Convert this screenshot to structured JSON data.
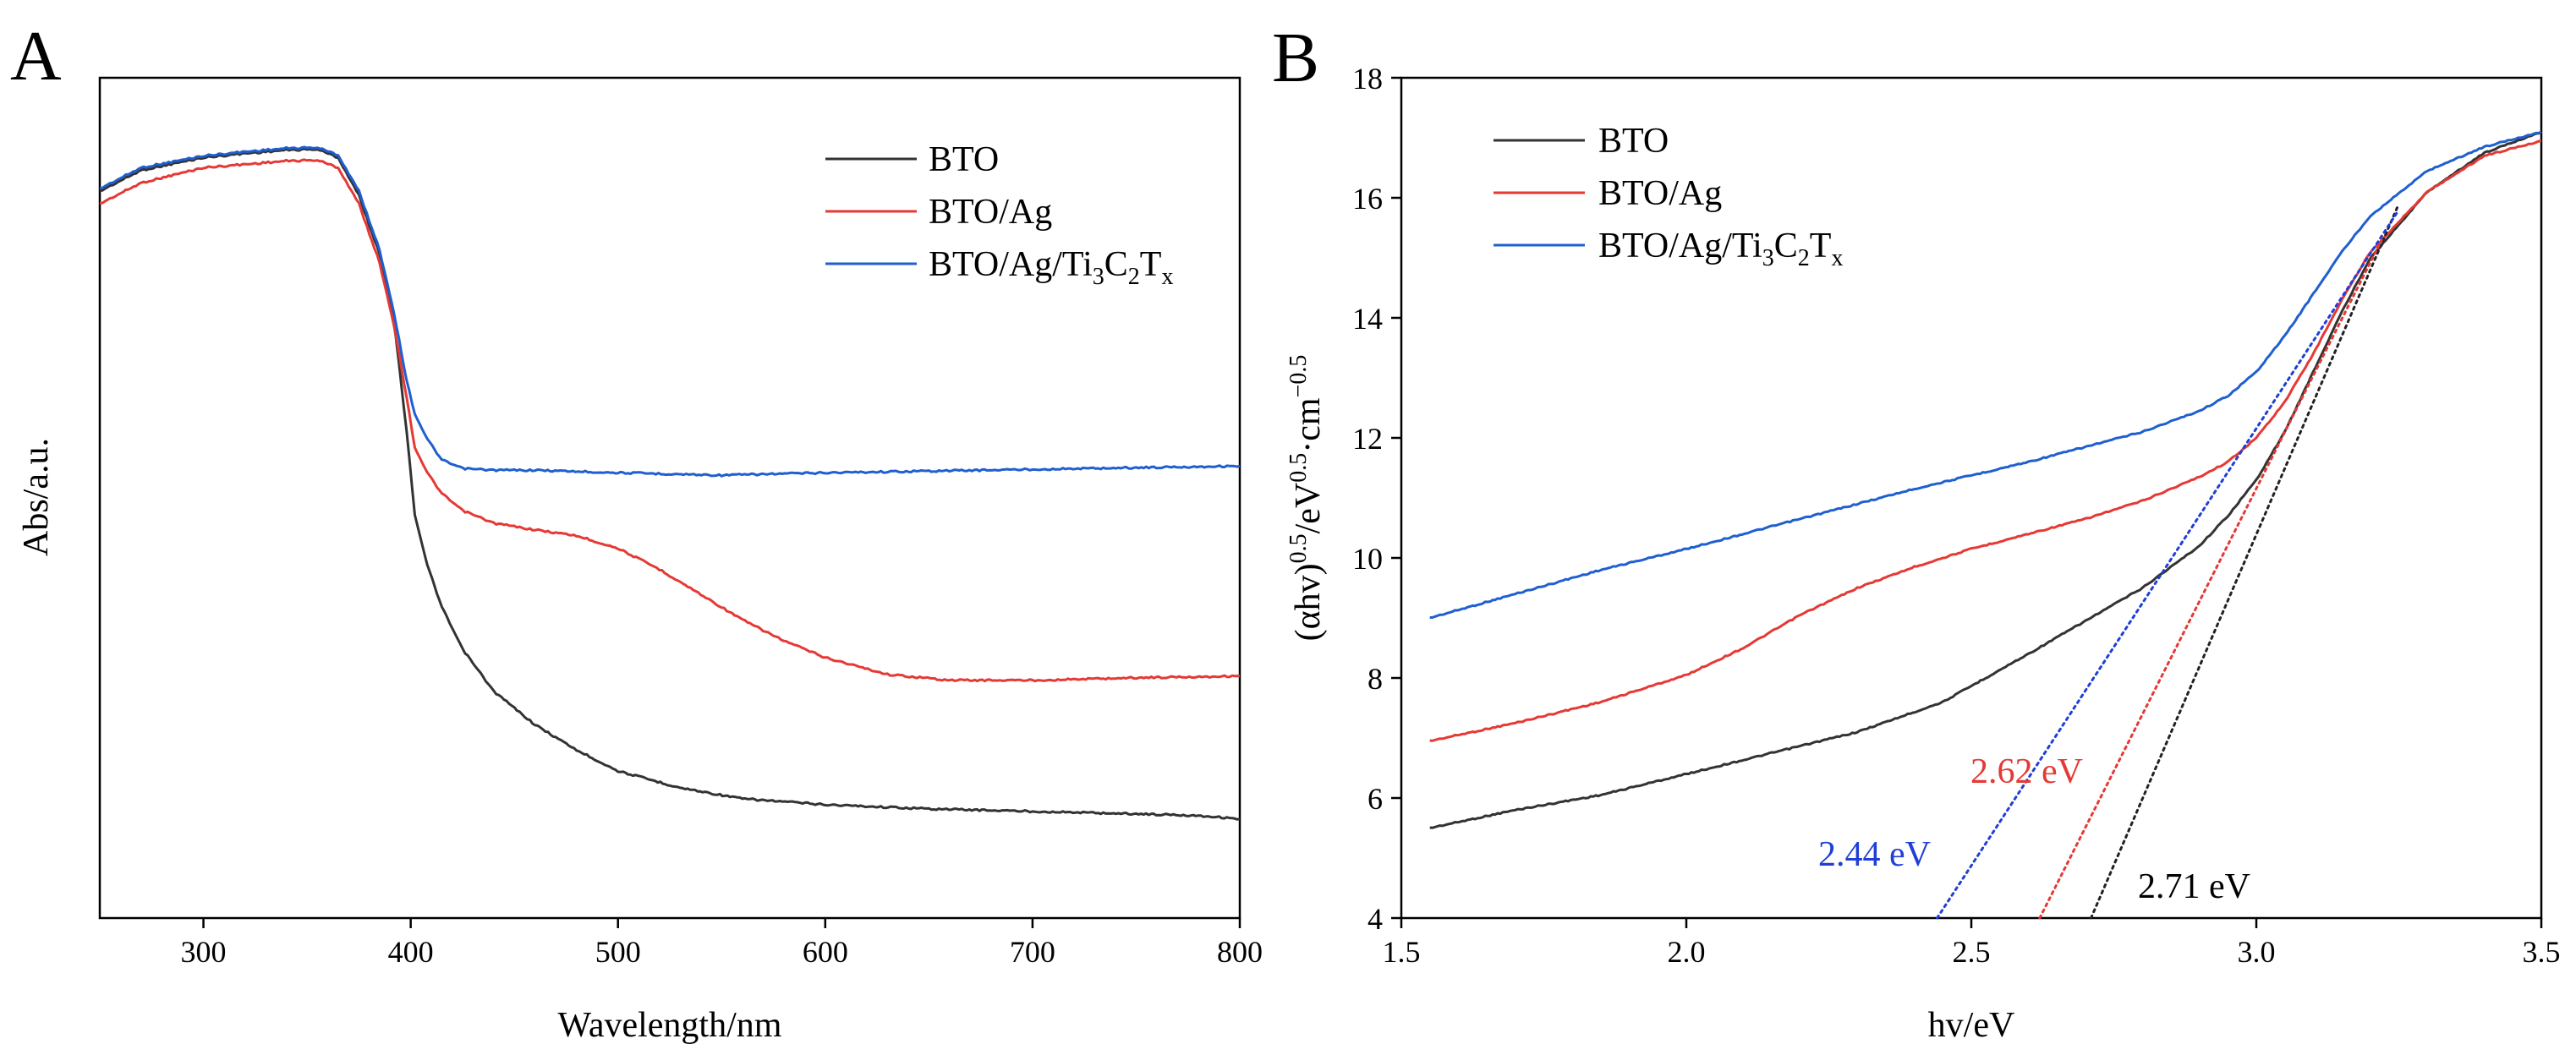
{
  "chart_data": [
    {
      "type": "line",
      "panel": "A",
      "title": "",
      "xlabel": "Wavelength/nm",
      "ylabel": "Abs/a.u.",
      "xlim": [
        250,
        800
      ],
      "ylim": [
        0,
        1
      ],
      "y_ticks_shown": false,
      "xticks": [
        300,
        400,
        500,
        600,
        700,
        800
      ],
      "xtick_labels": [
        "300",
        "400",
        "500",
        "600",
        "700",
        "800"
      ],
      "legend_position": "top-right",
      "series": [
        {
          "name": "BTO",
          "color": "#333333",
          "x": [
            250,
            270,
            300,
            320,
            340,
            355,
            365,
            375,
            385,
            392,
            398,
            402,
            408,
            415,
            425,
            440,
            460,
            480,
            500,
            530,
            560,
            600,
            650,
            700,
            750,
            780,
            800
          ],
          "y": [
            0.865,
            0.89,
            0.905,
            0.91,
            0.914,
            0.915,
            0.905,
            0.86,
            0.79,
            0.71,
            0.58,
            0.48,
            0.42,
            0.37,
            0.32,
            0.27,
            0.23,
            0.2,
            0.175,
            0.155,
            0.142,
            0.135,
            0.13,
            0.127,
            0.124,
            0.122,
            0.118
          ]
        },
        {
          "name": "BTO/Ag",
          "color": "#e53935",
          "x": [
            250,
            270,
            300,
            320,
            340,
            355,
            365,
            375,
            385,
            392,
            398,
            402,
            408,
            415,
            425,
            440,
            460,
            480,
            500,
            520,
            540,
            560,
            580,
            600,
            630,
            660,
            700,
            750,
            800
          ],
          "y": [
            0.85,
            0.875,
            0.893,
            0.897,
            0.901,
            0.902,
            0.893,
            0.85,
            0.78,
            0.705,
            0.62,
            0.56,
            0.53,
            0.505,
            0.485,
            0.47,
            0.462,
            0.455,
            0.44,
            0.415,
            0.385,
            0.355,
            0.33,
            0.31,
            0.29,
            0.283,
            0.283,
            0.286,
            0.288
          ]
        },
        {
          "name": "BTO/Ag/Ti3C2Tx",
          "color": "#1f5fcf",
          "x": [
            250,
            270,
            300,
            320,
            340,
            355,
            365,
            375,
            385,
            392,
            398,
            402,
            408,
            415,
            425,
            440,
            460,
            500,
            550,
            600,
            650,
            700,
            750,
            800
          ],
          "y": [
            0.868,
            0.893,
            0.907,
            0.912,
            0.916,
            0.917,
            0.908,
            0.865,
            0.795,
            0.72,
            0.64,
            0.6,
            0.57,
            0.545,
            0.535,
            0.533,
            0.533,
            0.53,
            0.527,
            0.53,
            0.532,
            0.534,
            0.536,
            0.538
          ]
        }
      ]
    },
    {
      "type": "line",
      "panel": "B",
      "title": "",
      "xlabel": "hv/eV",
      "ylabel_parts": [
        "(αhv)",
        "0.5",
        "/eV",
        "0.5",
        "·cm",
        "−0.5"
      ],
      "xlim": [
        1.5,
        3.5
      ],
      "ylim": [
        4,
        18
      ],
      "xticks": [
        1.5,
        2.0,
        2.5,
        3.0,
        3.5
      ],
      "xtick_labels": [
        "1.5",
        "2.0",
        "2.5",
        "3.0",
        "3.5"
      ],
      "yticks": [
        4,
        6,
        8,
        10,
        12,
        14,
        16,
        18
      ],
      "ytick_labels": [
        "4",
        "6",
        "8",
        "10",
        "12",
        "14",
        "16",
        "18"
      ],
      "legend_position": "top-left",
      "series": [
        {
          "name": "BTO",
          "color": "#333333",
          "x": [
            1.55,
            1.7,
            1.85,
            2.0,
            2.15,
            2.3,
            2.45,
            2.6,
            2.7,
            2.8,
            2.9,
            2.95,
            3.0,
            3.05,
            3.1,
            3.15,
            3.2,
            3.3,
            3.4,
            3.5
          ],
          "y": [
            5.5,
            5.8,
            6.05,
            6.4,
            6.75,
            7.1,
            7.6,
            8.4,
            8.95,
            9.5,
            10.2,
            10.7,
            11.3,
            12.1,
            13.1,
            14.1,
            15.0,
            16.1,
            16.75,
            17.1
          ]
        },
        {
          "name": "BTO/Ag",
          "color": "#e53935",
          "x": [
            1.55,
            1.7,
            1.85,
            2.0,
            2.1,
            2.2,
            2.3,
            2.4,
            2.5,
            2.6,
            2.7,
            2.8,
            2.9,
            2.95,
            3.0,
            3.05,
            3.1,
            3.15,
            3.2,
            3.3,
            3.4,
            3.5
          ],
          "y": [
            6.95,
            7.25,
            7.6,
            8.05,
            8.5,
            9.05,
            9.5,
            9.85,
            10.15,
            10.4,
            10.65,
            10.95,
            11.35,
            11.6,
            12.0,
            12.6,
            13.4,
            14.3,
            15.1,
            16.1,
            16.7,
            16.95
          ]
        },
        {
          "name": "BTO/Ag/Ti3C2Tx",
          "color": "#1f5fcf",
          "x": [
            1.55,
            1.7,
            1.85,
            2.0,
            2.2,
            2.4,
            2.6,
            2.8,
            2.9,
            2.95,
            3.0,
            3.05,
            3.1,
            3.15,
            3.2,
            3.3,
            3.4,
            3.5
          ],
          "y": [
            9.0,
            9.4,
            9.8,
            10.15,
            10.65,
            11.15,
            11.6,
            12.1,
            12.45,
            12.7,
            13.1,
            13.7,
            14.4,
            15.1,
            15.7,
            16.45,
            16.85,
            17.1
          ]
        }
      ],
      "tangents": [
        {
          "name": "BTO",
          "color": "#222222",
          "x": [
            2.71,
            3.25
          ],
          "y": [
            4,
            15.9
          ],
          "label": "2.71 eV"
        },
        {
          "name": "BTO/Ag",
          "color": "#e53935",
          "x": [
            2.62,
            3.22
          ],
          "y": [
            4,
            15.3
          ],
          "label": "2.62 eV"
        },
        {
          "name": "BTO/Ag/Ti3C2Tx",
          "color": "#1f3fd8",
          "x": [
            2.44,
            3.25
          ],
          "y": [
            4,
            15.8
          ],
          "label": "2.44 eV"
        }
      ]
    }
  ],
  "panels": {
    "a": {
      "letter": "A"
    },
    "b": {
      "letter": "B"
    }
  },
  "legend": {
    "bto": "BTO",
    "bto_ag": "BTO/Ag",
    "ternary_prefix": "BTO/Ag/Ti",
    "ternary_sub1": "3",
    "ternary_mid": "C",
    "ternary_sub2": "2",
    "ternary_t": "T",
    "ternary_sub3": "x"
  }
}
